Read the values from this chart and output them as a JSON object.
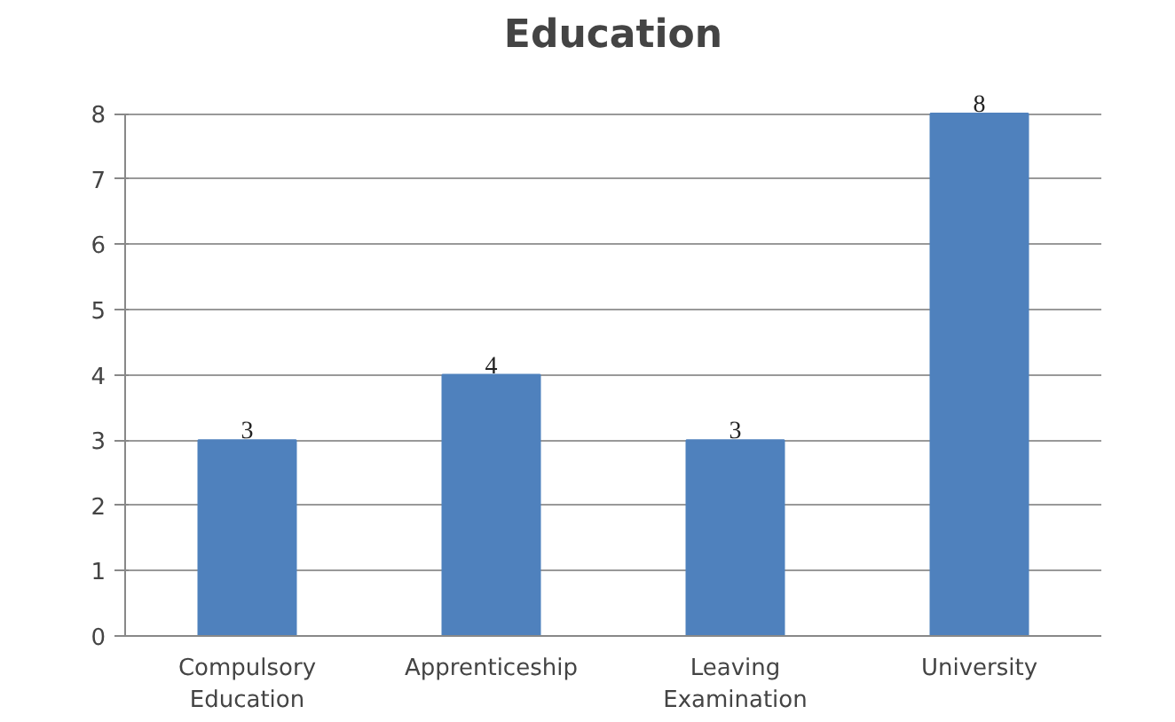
{
  "chart_data": {
    "type": "bar",
    "title": "Education",
    "categories": [
      "Compulsory Education",
      "Apprenticeship",
      "Leaving Examination",
      "University"
    ],
    "values": [
      3,
      4,
      3,
      8
    ],
    "color": "#4f81bd",
    "ylim": [
      0,
      8
    ],
    "yticks": [
      0,
      1,
      2,
      3,
      4,
      5,
      6,
      7,
      8
    ],
    "grid": "y",
    "data_labels": true,
    "legend": false
  }
}
